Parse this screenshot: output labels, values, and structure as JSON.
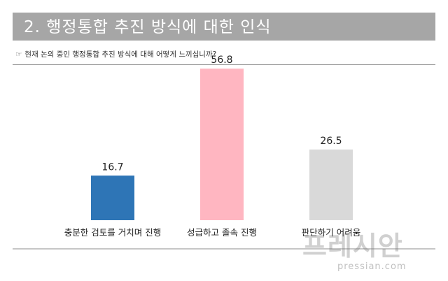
{
  "header": {
    "title": "2. 행정통합 추진 방식에 대한 인식"
  },
  "question": {
    "icon": "pointing-hand-icon",
    "text": "현재 논의 중인 행정통합 추진 방식에 대해 어떻게 느끼십니까?"
  },
  "chart_data": {
    "type": "bar",
    "title": "",
    "xlabel": "",
    "ylabel": "",
    "ylim": [
      0,
      60
    ],
    "grid": false,
    "categories": [
      "충분한 검토를 거치며 진행",
      "성급하고 졸속 진행",
      "판단하기 어려움"
    ],
    "values": [
      16.7,
      56.8,
      26.5
    ],
    "colors": [
      "#2e75b6",
      "#ffb6c1",
      "#d9d9d9"
    ],
    "data_labels": [
      "16.7",
      "56.8",
      "26.5"
    ]
  },
  "watermark": {
    "brand": "프레시안",
    "url": "pressian.com"
  }
}
